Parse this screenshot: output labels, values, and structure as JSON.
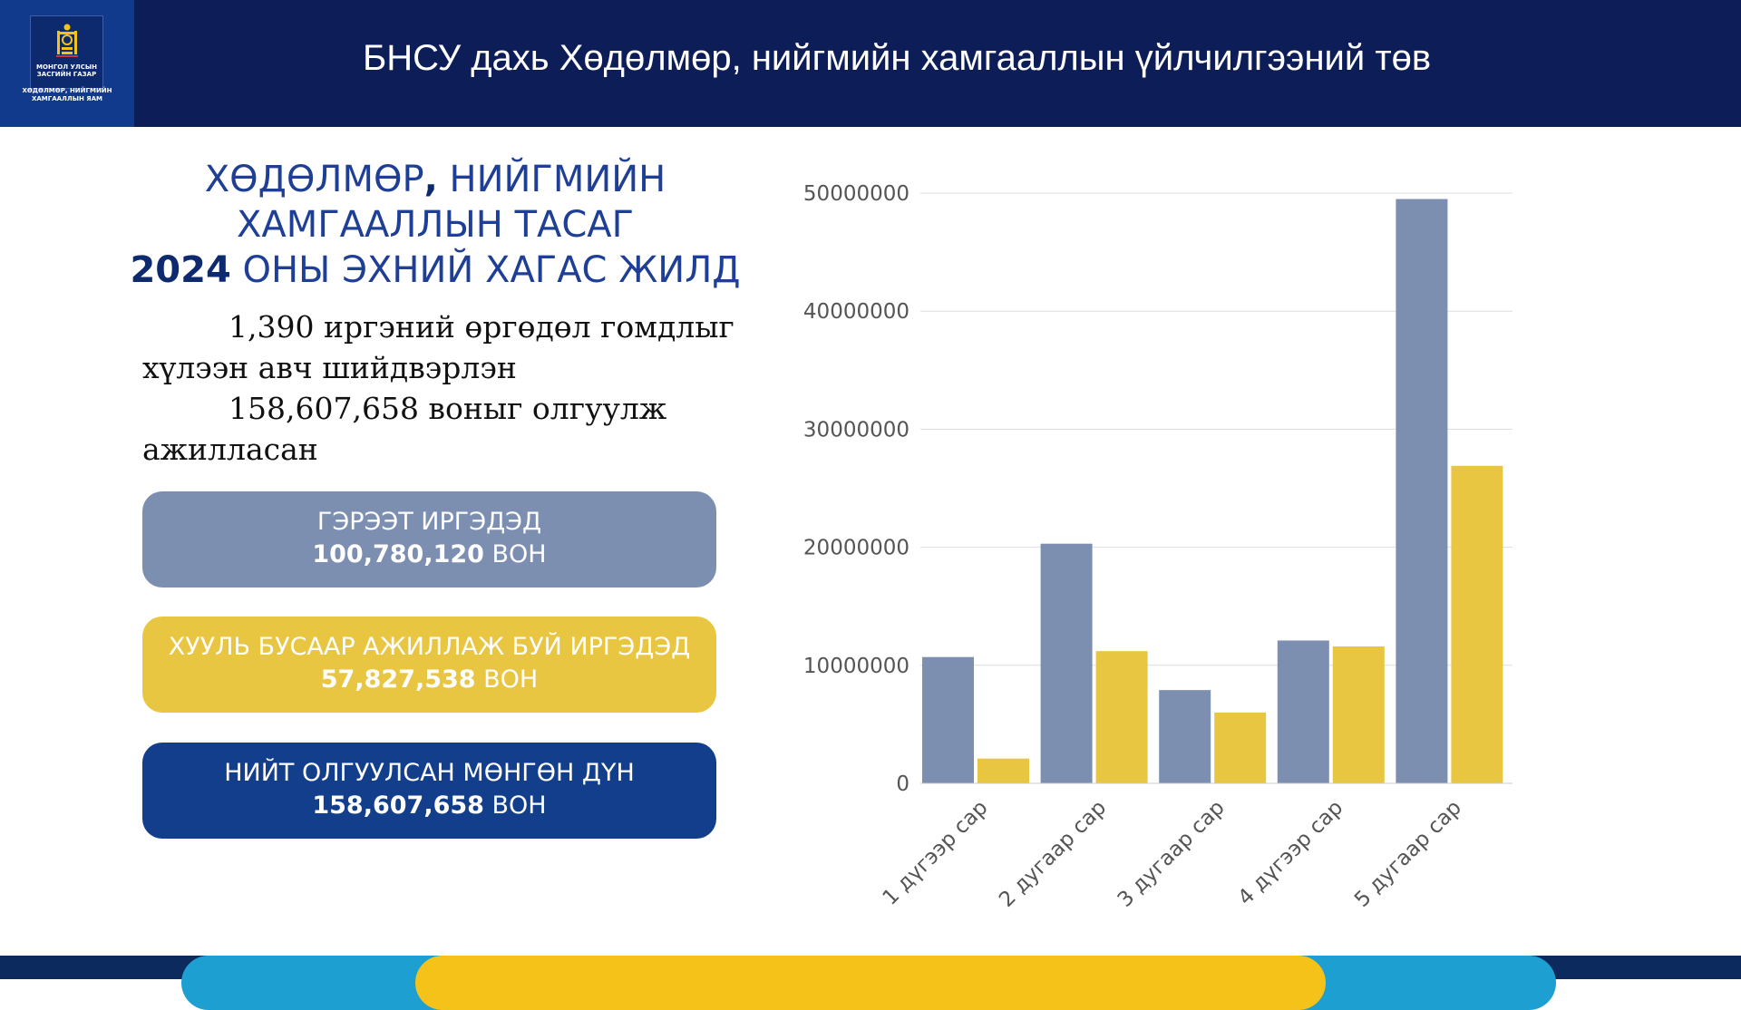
{
  "header": {
    "title": "БНСУ дахь Хөдөлмөр, нийгмийн хамгааллын үйлчилгээний төв",
    "logo_line1": "МОНГОЛ УЛСЫН ЗАСГИЙН ГАЗАР",
    "logo_line2": "ХӨДӨЛМӨР, НИЙГМИЙН ХАМГААЛЛЫН ЯАМ"
  },
  "section": {
    "title_line1": "ХӨДӨЛМӨР",
    "title_comma": ",",
    "title_line1b": " НИЙГМИЙН",
    "title_line2": "ХАМГААЛЛЫН ТАСАГ",
    "title_year": "2024",
    "title_line3": " ОНЫ ЭХНИЙ ХАГАС ЖИЛД"
  },
  "summary": {
    "line1": "1,390 иргэний өргөдөл гомдлыг",
    "line2": "хүлээн авч шийдвэрлэн",
    "line3": "158,607,658 воныг олгуулж",
    "line4": "ажилласан"
  },
  "cards": [
    {
      "label": "ГЭРЭЭТ ИРГЭДЭД",
      "amount": "100,780,120",
      "unit": " ВОН",
      "color": "#7d8fb1"
    },
    {
      "label": "ХУУЛЬ БУСААР АЖИЛЛАЖ БУЙ ИРГЭДЭД",
      "amount": "57,827,538",
      "unit": " ВОН",
      "color": "#e9c641"
    },
    {
      "label": "НИЙТ ОЛГУУЛСАН МӨНГӨН ДҮН",
      "amount": "158,607,658",
      "unit": " ВОН",
      "color": "#123e8c"
    }
  ],
  "chart_data": {
    "type": "bar",
    "categories": [
      "1 дүгээр сар",
      "2 дугаар сар",
      "3 дугаар сар",
      "4 дүгээр сар",
      "5 дугаар сар"
    ],
    "series": [
      {
        "values": [
          10700000,
          20300000,
          7900000,
          12100000,
          49500000
        ],
        "color": "#7d8fb1"
      },
      {
        "values": [
          2100000,
          11200000,
          6000000,
          11600000,
          26900000
        ],
        "color": "#e9c641"
      }
    ],
    "yticks": [
      "0",
      "10000000",
      "20000000",
      "30000000",
      "40000000",
      "50000000"
    ],
    "ylim": [
      0,
      50000000
    ],
    "grid": true,
    "legend": "none"
  },
  "icons": {
    "logo": "soyombo-emblem-icon"
  }
}
